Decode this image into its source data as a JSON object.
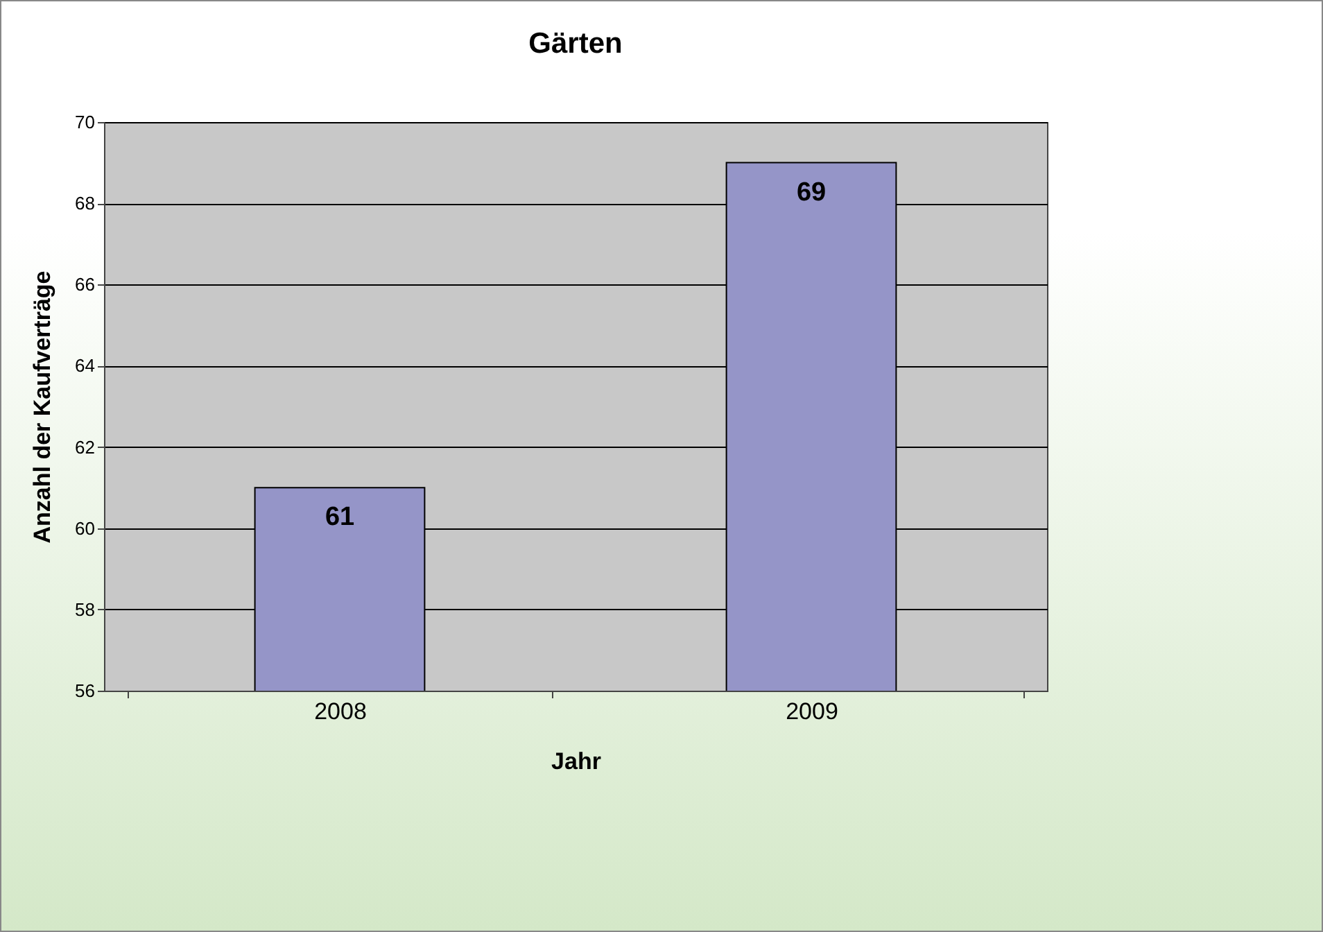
{
  "chart_data": {
    "type": "bar",
    "title": "Gärten",
    "xlabel": "Jahr",
    "ylabel": "Anzahl der Kaufverträge",
    "categories": [
      "2008",
      "2009"
    ],
    "values": [
      61,
      69
    ],
    "color": "#9595c8",
    "ylim": [
      56,
      70
    ],
    "yticks": [
      56,
      58,
      60,
      62,
      64,
      66,
      68,
      70
    ],
    "grid": "y",
    "data_labels": true
  }
}
